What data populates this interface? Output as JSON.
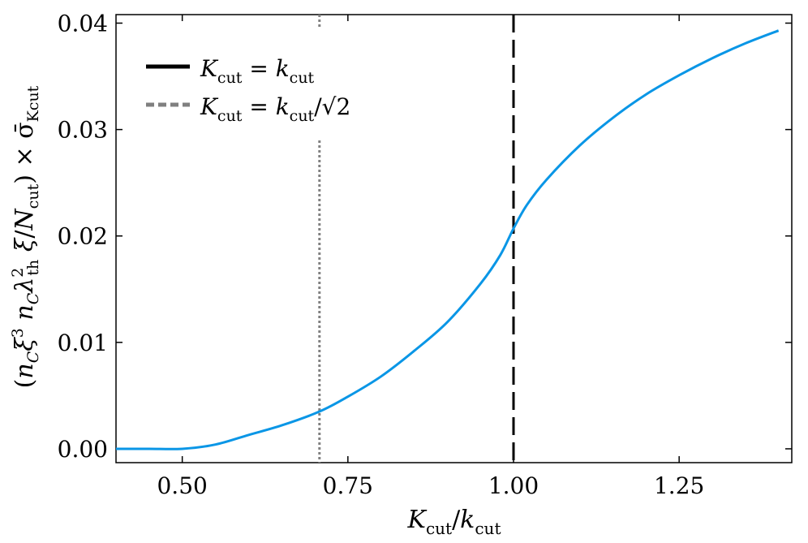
{
  "chart_data": {
    "type": "line",
    "xlabel": "K_cut/k_cut",
    "ylabel": "(n_C ξ³ n_C λ²_th ξ/N_cut) × σ̄_Kcut",
    "xlim": [
      0.4,
      1.42
    ],
    "ylim": [
      -0.0013,
      0.0408
    ],
    "xticks": [
      0.5,
      0.75,
      1.0,
      1.25
    ],
    "xtick_labels": [
      "0.50",
      "0.75",
      "1.00",
      "1.25"
    ],
    "yticks": [
      0.0,
      0.01,
      0.02,
      0.03,
      0.04
    ],
    "ytick_labels": [
      "0.00",
      "0.01",
      "0.02",
      "0.03",
      "0.04"
    ],
    "grid": false,
    "legend_position": "top-left",
    "legend": [
      {
        "label": "K_cut = k_cut",
        "style": "solid",
        "color": "#000000"
      },
      {
        "label": "K_cut = k_cut/√2",
        "style": "dashed",
        "color": "#808080"
      }
    ],
    "vlines": [
      {
        "x": 1.0,
        "color": "#000000",
        "style": "dashed"
      },
      {
        "x": 0.7071,
        "color": "#808080",
        "style": "dotted"
      }
    ],
    "series": [
      {
        "color": "#0a96e6",
        "x": [
          0.4,
          0.45,
          0.5,
          0.55,
          0.6,
          0.65,
          0.7071,
          0.75,
          0.8,
          0.85,
          0.9,
          0.95,
          0.98,
          1.0,
          1.02,
          1.05,
          1.1,
          1.15,
          1.2,
          1.25,
          1.3,
          1.35,
          1.4
        ],
        "y": [
          0.0,
          0.0,
          0.0,
          0.0004,
          0.0013,
          0.0022,
          0.0035,
          0.0049,
          0.0068,
          0.0092,
          0.0119,
          0.0155,
          0.0182,
          0.0207,
          0.0229,
          0.0253,
          0.0285,
          0.0311,
          0.0333,
          0.0351,
          0.0367,
          0.0381,
          0.0393
        ]
      }
    ]
  }
}
